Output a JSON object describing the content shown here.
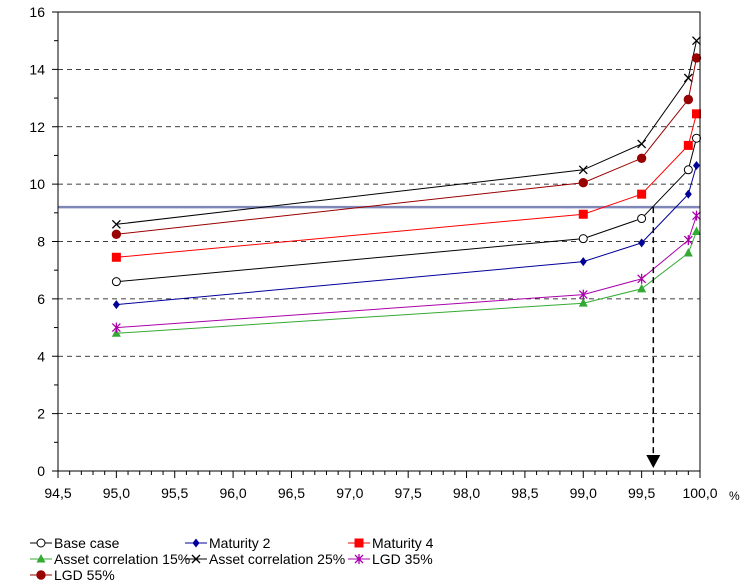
{
  "chart_data": {
    "type": "line",
    "title": "",
    "xlabel": "",
    "ylabel": "",
    "x_unit": "%",
    "xlim": [
      94.5,
      100.0
    ],
    "ylim": [
      0,
      16
    ],
    "x_ticks": [
      "94,5",
      "95,0",
      "95,5",
      "96,0",
      "96,5",
      "97,0",
      "97,5",
      "98,0",
      "98,5",
      "99,0",
      "99,5",
      "100,0"
    ],
    "y_ticks": [
      "0",
      "2",
      "4",
      "6",
      "8",
      "10",
      "12",
      "14",
      "16"
    ],
    "grid": "horizontal dashed",
    "legend_position": "bottom",
    "x": [
      95.0,
      99.0,
      99.5,
      99.9,
      99.97
    ],
    "horizontal_line": {
      "y": 9.2,
      "color": "#7f86b8"
    },
    "arrow": {
      "x": 99.6,
      "from_y": 9.2,
      "to_y": 0
    },
    "series": [
      {
        "name": "Base case",
        "color": "#000000",
        "marker": "circle-open",
        "values": [
          6.6,
          8.1,
          8.8,
          10.5,
          11.6
        ]
      },
      {
        "name": "Maturity 2",
        "color": "#000099",
        "marker": "diamond",
        "values": [
          5.8,
          7.3,
          7.95,
          9.65,
          10.65
        ]
      },
      {
        "name": "Maturity 4",
        "color": "#ff0000",
        "marker": "square",
        "values": [
          7.45,
          8.95,
          9.65,
          11.35,
          12.45
        ]
      },
      {
        "name": "Asset correlation 15%",
        "color": "#33aa33",
        "marker": "triangle",
        "values": [
          4.8,
          5.85,
          6.35,
          7.6,
          8.35
        ]
      },
      {
        "name": "Asset correlation 25%",
        "color": "#000000",
        "marker": "x",
        "values": [
          8.6,
          10.5,
          11.4,
          13.7,
          15.0
        ]
      },
      {
        "name": "LGD 35%",
        "color": "#aa00aa",
        "marker": "star",
        "values": [
          5.0,
          6.15,
          6.7,
          8.05,
          8.9
        ]
      },
      {
        "name": "LGD 55%",
        "color": "#990000",
        "marker": "circle-filled",
        "values": [
          8.25,
          10.05,
          10.9,
          12.95,
          14.4
        ]
      }
    ]
  }
}
